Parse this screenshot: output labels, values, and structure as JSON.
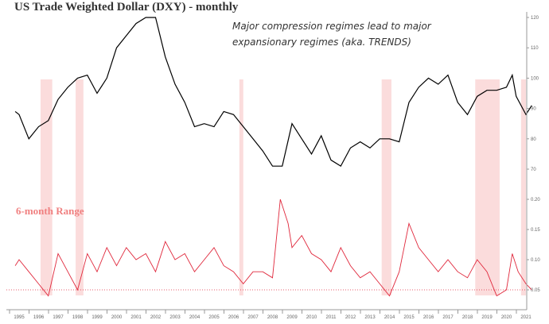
{
  "chart_data": [
    {
      "type": "line",
      "title": "US Trade Weighted Dollar (DXY) - monthly",
      "annotation": [
        "Major compression regimes lead to major",
        "expansionary regimes (aka. TRENDS)"
      ],
      "x_ticks": [
        "1995",
        "1996",
        "1997",
        "1998",
        "1999",
        "2000",
        "2001",
        "2002",
        "2003",
        "2004",
        "2005",
        "2006",
        "2007",
        "2008",
        "2009",
        "2010",
        "2011",
        "2012",
        "2013",
        "2014",
        "2015",
        "2016",
        "2017",
        "2018",
        "2019",
        "2020",
        "2021"
      ],
      "y_ticks": [
        70,
        80,
        90,
        100,
        110,
        120
      ],
      "ylim": [
        70,
        120
      ],
      "x": [
        1994.8,
        1995,
        1995.5,
        1996,
        1996.5,
        1997,
        1997.5,
        1998,
        1998.5,
        1999,
        1999.5,
        2000,
        2000.5,
        2001,
        2001.5,
        2002,
        2002.5,
        2003,
        2003.5,
        2004,
        2004.5,
        2005,
        2005.5,
        2006,
        2006.5,
        2007,
        2007.5,
        2008,
        2008.5,
        2009,
        2009.5,
        2010,
        2010.5,
        2011,
        2011.5,
        2012,
        2012.5,
        2013,
        2013.5,
        2014,
        2014.5,
        2015,
        2015.5,
        2016,
        2016.5,
        2017,
        2017.5,
        2018,
        2018.5,
        2019,
        2019.5,
        2020,
        2020.3,
        2020.5,
        2021,
        2021.3
      ],
      "series": [
        {
          "values": [
            89,
            88,
            80,
            84,
            86,
            93,
            97,
            100,
            101,
            95,
            100,
            110,
            114,
            118,
            120,
            120,
            107,
            98,
            92,
            84,
            85,
            84,
            89,
            88,
            84,
            80,
            76,
            71,
            71,
            85,
            80,
            75,
            81,
            73,
            71,
            77,
            79,
            77,
            80,
            80,
            79,
            92,
            97,
            100,
            98,
            101,
            92,
            88,
            94,
            96,
            96,
            97,
            101,
            94,
            88,
            91
          ],
          "color": "#000000"
        }
      ],
      "shaded_regimes": [
        [
          1996.1,
          1996.7
        ],
        [
          1997.9,
          1998.3
        ],
        [
          2006.3,
          2006.5
        ],
        [
          2013.6,
          2014.1
        ],
        [
          2018.4,
          2019.65
        ],
        [
          2020.75,
          2021.0
        ]
      ],
      "shade_color": "#fbdcdc",
      "grid": false
    },
    {
      "type": "line",
      "label": "6-month Range",
      "y_ticks": [
        0.05,
        0.1,
        0.15,
        0.2
      ],
      "ylim": [
        0.03,
        0.25
      ],
      "reference_line": 0.05,
      "x": [
        1994.8,
        1995,
        1995.5,
        1996,
        1996.5,
        1997,
        1997.5,
        1998,
        1998.5,
        1999,
        1999.5,
        2000,
        2000.5,
        2001,
        2001.5,
        2002,
        2002.5,
        2003,
        2003.5,
        2004,
        2004.5,
        2005,
        2005.5,
        2006,
        2006.5,
        2007,
        2007.5,
        2008,
        2008.4,
        2008.8,
        2009,
        2009.5,
        2010,
        2010.5,
        2011,
        2011.5,
        2012,
        2012.5,
        2013,
        2013.5,
        2014,
        2014.5,
        2015,
        2015.5,
        2016,
        2016.5,
        2017,
        2017.5,
        2018,
        2018.5,
        2019,
        2019.5,
        2020,
        2020.3,
        2020.6,
        2021,
        2021.3
      ],
      "series": [
        {
          "values": [
            0.09,
            0.1,
            0.08,
            0.06,
            0.04,
            0.11,
            0.08,
            0.05,
            0.11,
            0.08,
            0.12,
            0.09,
            0.12,
            0.1,
            0.11,
            0.08,
            0.13,
            0.1,
            0.11,
            0.08,
            0.1,
            0.12,
            0.09,
            0.08,
            0.06,
            0.08,
            0.08,
            0.07,
            0.2,
            0.16,
            0.12,
            0.14,
            0.11,
            0.1,
            0.08,
            0.12,
            0.09,
            0.07,
            0.08,
            0.06,
            0.04,
            0.08,
            0.16,
            0.12,
            0.1,
            0.08,
            0.1,
            0.08,
            0.07,
            0.1,
            0.08,
            0.04,
            0.05,
            0.11,
            0.08,
            0.06,
            0.05
          ],
          "color": "#e0283c"
        }
      ]
    }
  ]
}
